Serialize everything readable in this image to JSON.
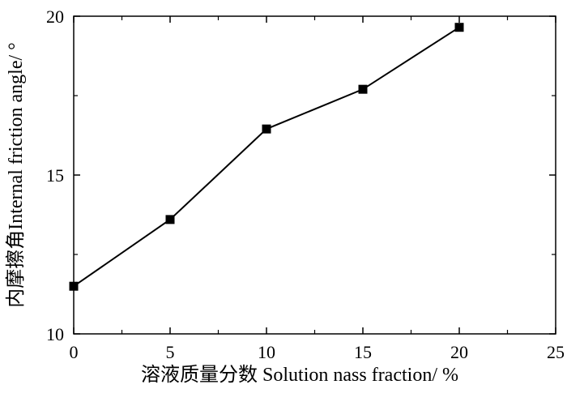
{
  "chart_data": {
    "type": "line",
    "title": "",
    "xlabel": "溶液质量分数 Solution nass fraction/ %",
    "ylabel": "内摩擦角Internal friction angle/ °",
    "xlim": [
      0,
      25
    ],
    "ylim": [
      10,
      20
    ],
    "x_ticks": [
      "0",
      "5",
      "10",
      "15",
      "20",
      "25"
    ],
    "y_ticks": [
      "10",
      "15",
      "20"
    ],
    "grid": false,
    "legend": "none",
    "marker": "square",
    "color": "#000000",
    "series": [
      {
        "x": [
          0,
          5,
          10,
          15,
          20
        ],
        "values": [
          11.5,
          13.6,
          16.45,
          17.7,
          19.65
        ]
      }
    ]
  }
}
